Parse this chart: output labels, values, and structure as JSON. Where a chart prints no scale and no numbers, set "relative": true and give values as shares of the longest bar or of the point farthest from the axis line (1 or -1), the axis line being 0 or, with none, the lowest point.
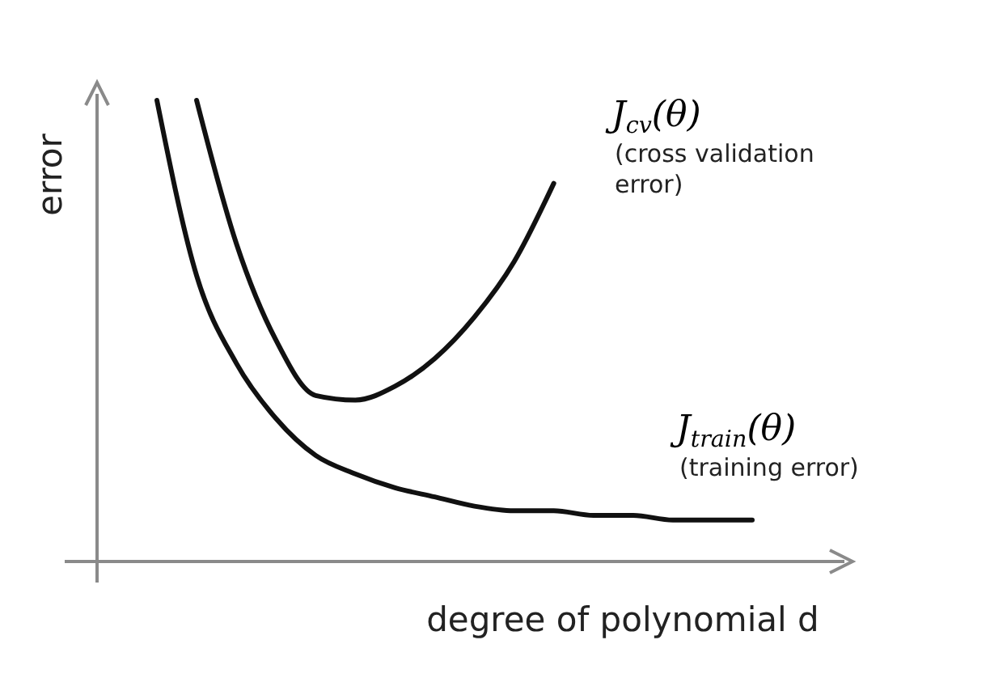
{
  "chart_data": {
    "type": "line",
    "relative": true,
    "xlabel": "degree of polynomial d",
    "ylabel": "error",
    "categories": [
      null,
      null,
      null,
      null,
      null,
      null,
      null,
      null,
      null,
      null,
      null,
      null,
      null,
      null,
      null,
      null
    ],
    "series": [
      {
        "name": "J$_{cv}$(θ)",
        "color": "#111111",
        "values": [
          null,
          1.0,
          0.69,
          0.48,
          0.36,
          0.35,
          0.38,
          0.44,
          0.53,
          0.65,
          0.82,
          null,
          null,
          null,
          null,
          null
        ]
      },
      {
        "name": "J$_{train}$(θ)",
        "color": "#111111",
        "values": [
          1.0,
          0.62,
          0.43,
          0.31,
          0.23,
          0.19,
          0.16,
          0.14,
          0.12,
          0.11,
          0.11,
          0.1,
          0.1,
          0.09,
          0.09,
          0.09
        ]
      }
    ],
    "annotations": [
      "(cross validation error)",
      "(training error)"
    ],
    "marker": "none",
    "line_style": "solid"
  }
}
